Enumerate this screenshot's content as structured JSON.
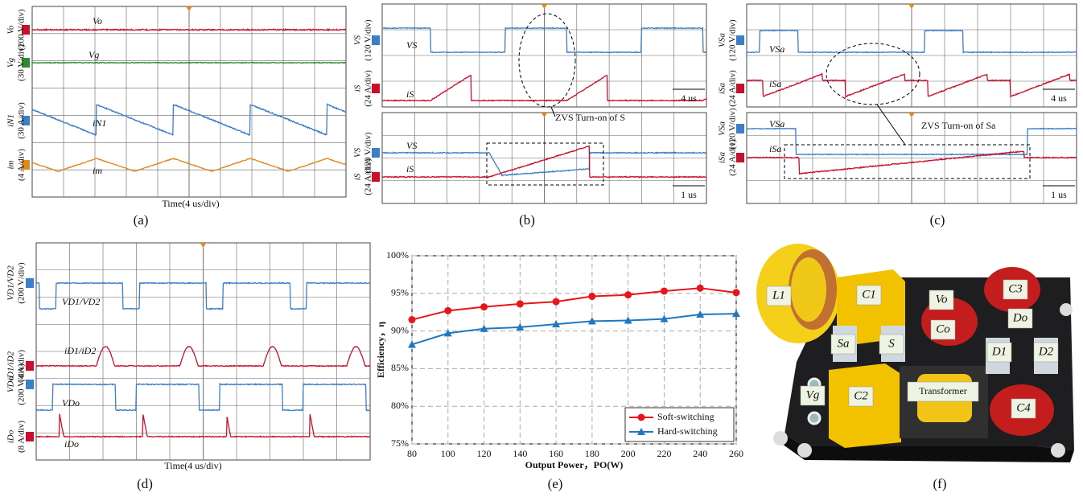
{
  "captions": [
    "(a)",
    "(b)",
    "(c)",
    "(d)",
    "(e)",
    "(f)"
  ],
  "panels": [
    {
      "footer": "Time(4 us/div)",
      "views": [
        {
          "channels": [
            {
              "symbol": "Vo",
              "scale": "(200 V/div)",
              "trace": "Vo",
              "color": "#c8102e"
            },
            {
              "symbol": "Vg",
              "scale": "(30 V/div)",
              "trace": "Vg",
              "color": "#2e8b2e"
            },
            {
              "symbol": "iN1",
              "scale": "(30 A/div)",
              "trace": "iN1",
              "color": "#3a7fc8"
            },
            {
              "symbol": "im",
              "scale": "(4 A/div)",
              "trace": "im",
              "color": "#e08a1e"
            }
          ]
        }
      ]
    },
    {
      "annotation": "ZVS Turn-on of S",
      "views": [
        {
          "scale": "4 us",
          "channels": [
            {
              "symbol": "VS",
              "scale": "(120 V/div)",
              "trace": "VS",
              "color": "#3a7fc8"
            },
            {
              "symbol": "iS",
              "scale": "(24 A/div)",
              "trace": "iS",
              "color": "#c8102e"
            }
          ]
        },
        {
          "scale": "1 us",
          "channels": [
            {
              "symbol": "VS",
              "scale": "(120 V/div)",
              "trace": "VS",
              "color": "#3a7fc8"
            },
            {
              "symbol": "iS",
              "scale": "(24 A/div)",
              "trace": "iS",
              "color": "#c8102e"
            }
          ]
        }
      ]
    },
    {
      "annotation": "ZVS Turn-on of Sa",
      "views": [
        {
          "scale": "4 us",
          "channels": [
            {
              "symbol": "VSa",
              "scale": "(120 V/div)",
              "trace": "VSa",
              "color": "#3a7fc8"
            },
            {
              "symbol": "iSa",
              "scale": "(24 A/div)",
              "trace": "iSa",
              "color": "#c8102e"
            }
          ]
        },
        {
          "scale": "1 us",
          "channels": [
            {
              "symbol": "VSa",
              "scale": "(120 V/div)",
              "trace": "VSa",
              "color": "#3a7fc8"
            },
            {
              "symbol": "iSa",
              "scale": "(24 A/div)",
              "trace": "iSa",
              "color": "#c8102e"
            }
          ]
        }
      ]
    },
    {
      "footer": "Time(4 us/div)",
      "views": [
        {
          "channels": [
            {
              "symbol": "VD1/VD2",
              "scale": "(200 V/div)",
              "trace": "VD1/VD2",
              "color": "#3a7fc8"
            },
            {
              "symbol": "iD1/iD2",
              "scale": "(4 A/div)",
              "trace": "iD1/iD2",
              "color": "#c8102e"
            },
            {
              "symbol": "VDo",
              "scale": "(200 V/div)",
              "trace": "VDo",
              "color": "#3a7fc8"
            },
            {
              "symbol": "iDo",
              "scale": "(8 A/div)",
              "trace": "iDo",
              "color": "#c8102e"
            }
          ]
        }
      ]
    }
  ],
  "chart_data": {
    "type": "line",
    "x_label": "Output Power，PO(W)",
    "y_label": "Efficiency，η",
    "x": [
      80,
      100,
      120,
      140,
      160,
      180,
      200,
      220,
      240,
      260
    ],
    "series": [
      {
        "name": "Soft-switching",
        "color": "#e8151b",
        "marker": "circle",
        "values": [
          91.5,
          92.7,
          93.2,
          93.6,
          93.9,
          94.6,
          94.8,
          95.3,
          95.7,
          95.1
        ]
      },
      {
        "name": "Hard-switching",
        "color": "#1f78c1",
        "marker": "triangle",
        "values": [
          88.2,
          89.7,
          90.3,
          90.5,
          90.9,
          91.3,
          91.4,
          91.6,
          92.2,
          92.3
        ]
      }
    ],
    "xlim": [
      80,
      260
    ],
    "xticks": [
      80,
      100,
      120,
      140,
      160,
      180,
      200,
      220,
      240,
      260
    ],
    "ylim": [
      75,
      100
    ],
    "yticks": [
      {
        "value": 75,
        "label": "75%"
      },
      {
        "value": 80,
        "label": "80%"
      },
      {
        "value": 85,
        "label": "85%"
      },
      {
        "value": 90,
        "label": "90%"
      },
      {
        "value": 95,
        "label": "95%"
      },
      {
        "value": 100,
        "label": "100%"
      }
    ],
    "grid": true,
    "legend": "lower right"
  },
  "photo": {
    "labels": [
      "L1",
      "C1",
      "Vo",
      "Co",
      "C3",
      "Do",
      "Sa",
      "S",
      "D1",
      "D2",
      "Vg",
      "C2",
      "Transformer",
      "C4"
    ]
  }
}
